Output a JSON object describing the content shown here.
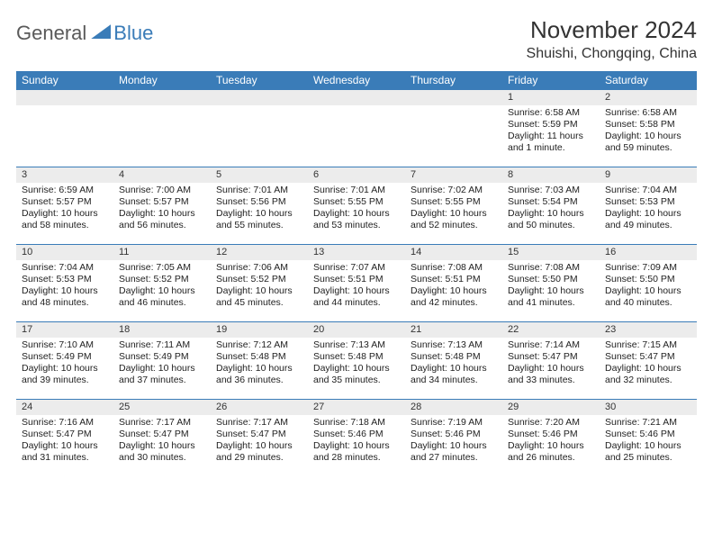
{
  "logo": {
    "text1": "General",
    "text2": "Blue"
  },
  "header": {
    "title": "November 2024",
    "location": "Shuishi, Chongqing, China"
  },
  "theme": {
    "header_bg": "#3a7cb8",
    "header_fg": "#ffffff",
    "daynum_bg": "#ececec",
    "border_color": "#3a7cb8",
    "text_color": "#222222",
    "page_bg": "#ffffff",
    "title_fontsize": 26,
    "location_fontsize": 16,
    "dow_fontsize": 12,
    "cell_fontsize": 10.5
  },
  "dow": [
    "Sunday",
    "Monday",
    "Tuesday",
    "Wednesday",
    "Thursday",
    "Friday",
    "Saturday"
  ],
  "weeks": [
    [
      null,
      null,
      null,
      null,
      null,
      {
        "n": "1",
        "sunrise": "Sunrise: 6:58 AM",
        "sunset": "Sunset: 5:59 PM",
        "daylight": "Daylight: 11 hours and 1 minute."
      },
      {
        "n": "2",
        "sunrise": "Sunrise: 6:58 AM",
        "sunset": "Sunset: 5:58 PM",
        "daylight": "Daylight: 10 hours and 59 minutes."
      }
    ],
    [
      {
        "n": "3",
        "sunrise": "Sunrise: 6:59 AM",
        "sunset": "Sunset: 5:57 PM",
        "daylight": "Daylight: 10 hours and 58 minutes."
      },
      {
        "n": "4",
        "sunrise": "Sunrise: 7:00 AM",
        "sunset": "Sunset: 5:57 PM",
        "daylight": "Daylight: 10 hours and 56 minutes."
      },
      {
        "n": "5",
        "sunrise": "Sunrise: 7:01 AM",
        "sunset": "Sunset: 5:56 PM",
        "daylight": "Daylight: 10 hours and 55 minutes."
      },
      {
        "n": "6",
        "sunrise": "Sunrise: 7:01 AM",
        "sunset": "Sunset: 5:55 PM",
        "daylight": "Daylight: 10 hours and 53 minutes."
      },
      {
        "n": "7",
        "sunrise": "Sunrise: 7:02 AM",
        "sunset": "Sunset: 5:55 PM",
        "daylight": "Daylight: 10 hours and 52 minutes."
      },
      {
        "n": "8",
        "sunrise": "Sunrise: 7:03 AM",
        "sunset": "Sunset: 5:54 PM",
        "daylight": "Daylight: 10 hours and 50 minutes."
      },
      {
        "n": "9",
        "sunrise": "Sunrise: 7:04 AM",
        "sunset": "Sunset: 5:53 PM",
        "daylight": "Daylight: 10 hours and 49 minutes."
      }
    ],
    [
      {
        "n": "10",
        "sunrise": "Sunrise: 7:04 AM",
        "sunset": "Sunset: 5:53 PM",
        "daylight": "Daylight: 10 hours and 48 minutes."
      },
      {
        "n": "11",
        "sunrise": "Sunrise: 7:05 AM",
        "sunset": "Sunset: 5:52 PM",
        "daylight": "Daylight: 10 hours and 46 minutes."
      },
      {
        "n": "12",
        "sunrise": "Sunrise: 7:06 AM",
        "sunset": "Sunset: 5:52 PM",
        "daylight": "Daylight: 10 hours and 45 minutes."
      },
      {
        "n": "13",
        "sunrise": "Sunrise: 7:07 AM",
        "sunset": "Sunset: 5:51 PM",
        "daylight": "Daylight: 10 hours and 44 minutes."
      },
      {
        "n": "14",
        "sunrise": "Sunrise: 7:08 AM",
        "sunset": "Sunset: 5:51 PM",
        "daylight": "Daylight: 10 hours and 42 minutes."
      },
      {
        "n": "15",
        "sunrise": "Sunrise: 7:08 AM",
        "sunset": "Sunset: 5:50 PM",
        "daylight": "Daylight: 10 hours and 41 minutes."
      },
      {
        "n": "16",
        "sunrise": "Sunrise: 7:09 AM",
        "sunset": "Sunset: 5:50 PM",
        "daylight": "Daylight: 10 hours and 40 minutes."
      }
    ],
    [
      {
        "n": "17",
        "sunrise": "Sunrise: 7:10 AM",
        "sunset": "Sunset: 5:49 PM",
        "daylight": "Daylight: 10 hours and 39 minutes."
      },
      {
        "n": "18",
        "sunrise": "Sunrise: 7:11 AM",
        "sunset": "Sunset: 5:49 PM",
        "daylight": "Daylight: 10 hours and 37 minutes."
      },
      {
        "n": "19",
        "sunrise": "Sunrise: 7:12 AM",
        "sunset": "Sunset: 5:48 PM",
        "daylight": "Daylight: 10 hours and 36 minutes."
      },
      {
        "n": "20",
        "sunrise": "Sunrise: 7:13 AM",
        "sunset": "Sunset: 5:48 PM",
        "daylight": "Daylight: 10 hours and 35 minutes."
      },
      {
        "n": "21",
        "sunrise": "Sunrise: 7:13 AM",
        "sunset": "Sunset: 5:48 PM",
        "daylight": "Daylight: 10 hours and 34 minutes."
      },
      {
        "n": "22",
        "sunrise": "Sunrise: 7:14 AM",
        "sunset": "Sunset: 5:47 PM",
        "daylight": "Daylight: 10 hours and 33 minutes."
      },
      {
        "n": "23",
        "sunrise": "Sunrise: 7:15 AM",
        "sunset": "Sunset: 5:47 PM",
        "daylight": "Daylight: 10 hours and 32 minutes."
      }
    ],
    [
      {
        "n": "24",
        "sunrise": "Sunrise: 7:16 AM",
        "sunset": "Sunset: 5:47 PM",
        "daylight": "Daylight: 10 hours and 31 minutes."
      },
      {
        "n": "25",
        "sunrise": "Sunrise: 7:17 AM",
        "sunset": "Sunset: 5:47 PM",
        "daylight": "Daylight: 10 hours and 30 minutes."
      },
      {
        "n": "26",
        "sunrise": "Sunrise: 7:17 AM",
        "sunset": "Sunset: 5:47 PM",
        "daylight": "Daylight: 10 hours and 29 minutes."
      },
      {
        "n": "27",
        "sunrise": "Sunrise: 7:18 AM",
        "sunset": "Sunset: 5:46 PM",
        "daylight": "Daylight: 10 hours and 28 minutes."
      },
      {
        "n": "28",
        "sunrise": "Sunrise: 7:19 AM",
        "sunset": "Sunset: 5:46 PM",
        "daylight": "Daylight: 10 hours and 27 minutes."
      },
      {
        "n": "29",
        "sunrise": "Sunrise: 7:20 AM",
        "sunset": "Sunset: 5:46 PM",
        "daylight": "Daylight: 10 hours and 26 minutes."
      },
      {
        "n": "30",
        "sunrise": "Sunrise: 7:21 AM",
        "sunset": "Sunset: 5:46 PM",
        "daylight": "Daylight: 10 hours and 25 minutes."
      }
    ]
  ]
}
